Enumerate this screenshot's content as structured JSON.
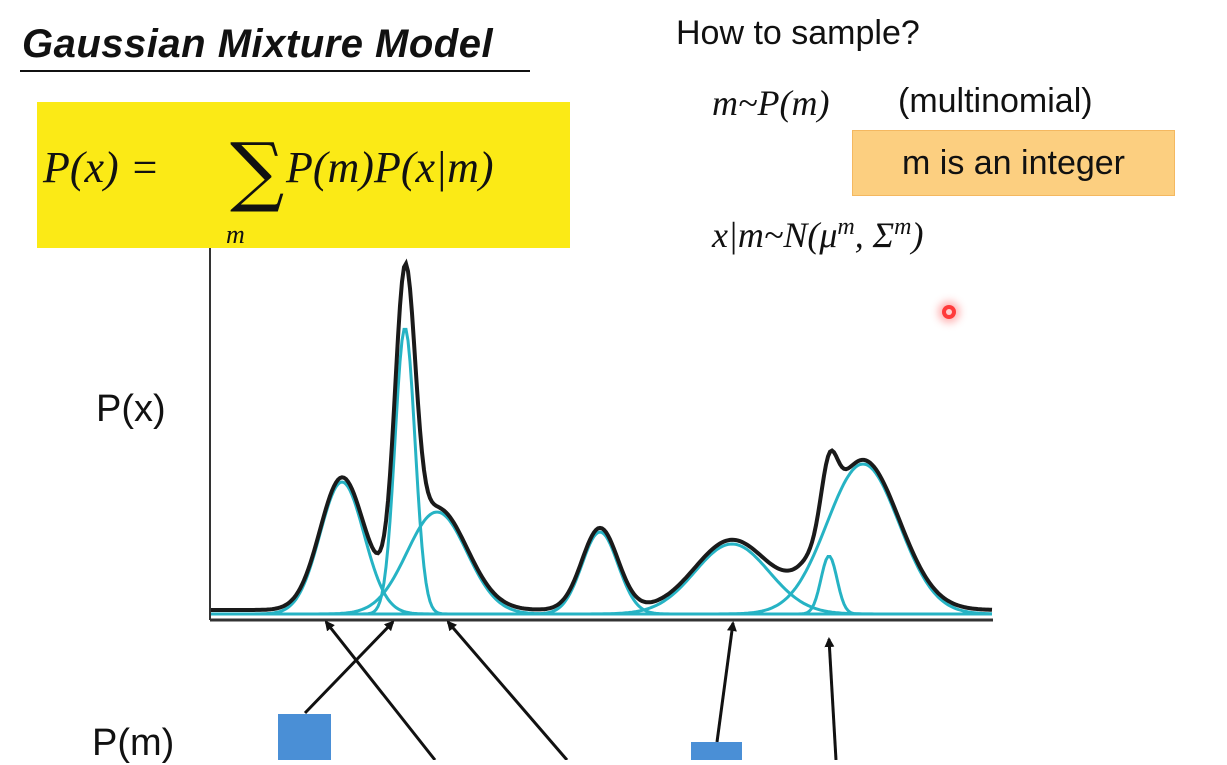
{
  "title": "Gaussian Mixture Model",
  "formula": {
    "lhs": "P(x) =",
    "sum_symbol": "∑",
    "sum_index": "m",
    "rhs": "P(m)P(x|m)"
  },
  "sampling": {
    "heading": "How to sample?",
    "step1_math": "m~P(m)",
    "step1_note": "(multinomial)",
    "integer_note": "m is an integer",
    "step2_math": "x|m~N(μ",
    "step2_sup1": "m",
    "step2_mid": ", Σ",
    "step2_sup2": "m",
    "step2_close": ")"
  },
  "axis_labels": {
    "px": "P(x)",
    "pm": "P(m)"
  },
  "colors": {
    "highlight_yellow": "#fbea16",
    "note_orange": "#fccf80",
    "mixture_curve": "#1a1a1a",
    "component_curve": "#26b3c4",
    "bar_blue": "#4a8fd6",
    "pointer_red": "#ff3b3b"
  }
}
